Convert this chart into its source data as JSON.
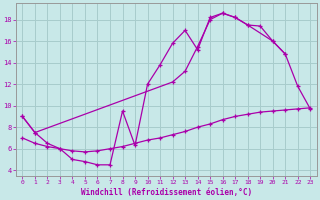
{
  "xlabel": "Windchill (Refroidissement éolien,°C)",
  "background_color": "#c8e8e8",
  "grid_color": "#a8cccc",
  "line_color": "#aa00aa",
  "xlim": [
    -0.5,
    23.5
  ],
  "ylim": [
    3.5,
    19.5
  ],
  "xticks": [
    0,
    1,
    2,
    3,
    4,
    5,
    6,
    7,
    8,
    9,
    10,
    11,
    12,
    13,
    14,
    15,
    16,
    17,
    18,
    19,
    20,
    21,
    22,
    23
  ],
  "yticks": [
    4,
    6,
    8,
    10,
    12,
    14,
    16,
    18
  ],
  "line1_x": [
    0,
    1,
    2,
    3,
    4,
    5,
    6,
    7,
    8,
    9,
    10,
    11,
    12,
    13,
    14,
    15,
    16,
    17,
    18,
    19,
    20,
    21
  ],
  "line1_y": [
    9.0,
    7.5,
    6.5,
    6.0,
    5.0,
    4.8,
    4.5,
    4.5,
    9.5,
    6.3,
    12.0,
    13.8,
    15.8,
    17.0,
    15.2,
    18.2,
    18.6,
    18.2,
    17.5,
    17.4,
    16.0,
    14.8
  ],
  "line2_x": [
    0,
    1,
    12,
    13,
    14,
    15,
    16,
    17,
    18,
    20,
    21,
    22,
    23
  ],
  "line2_y": [
    9.0,
    7.5,
    12.2,
    13.2,
    15.5,
    18.0,
    18.6,
    18.2,
    17.5,
    16.0,
    14.8,
    11.8,
    9.7
  ],
  "line3_x": [
    0,
    1,
    2,
    3,
    4,
    5,
    6,
    7,
    8,
    9,
    10,
    11,
    12,
    13,
    14,
    15,
    16,
    17,
    18,
    19,
    20,
    21,
    22,
    23
  ],
  "line3_y": [
    7.0,
    6.5,
    6.2,
    6.0,
    5.8,
    5.7,
    5.8,
    6.0,
    6.2,
    6.5,
    6.8,
    7.0,
    7.3,
    7.6,
    8.0,
    8.3,
    8.7,
    9.0,
    9.2,
    9.4,
    9.5,
    9.6,
    9.7,
    9.8
  ]
}
